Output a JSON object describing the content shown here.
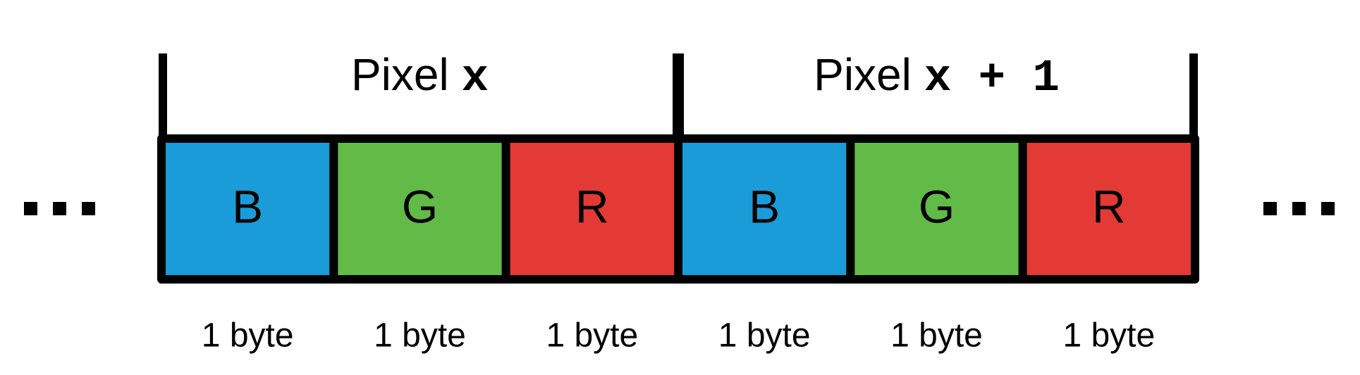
{
  "pixels": [
    {
      "label": "Pixel",
      "expr": "x"
    },
    {
      "label": "Pixel",
      "expr": "x + 1"
    }
  ],
  "cells": [
    {
      "channel": "B",
      "size": "1 byte",
      "color": "#1a9cd8"
    },
    {
      "channel": "G",
      "size": "1 byte",
      "color": "#62bb47"
    },
    {
      "channel": "R",
      "size": "1 byte",
      "color": "#e33a36"
    },
    {
      "channel": "B",
      "size": "1 byte",
      "color": "#1a9cd8"
    },
    {
      "channel": "G",
      "size": "1 byte",
      "color": "#62bb47"
    },
    {
      "channel": "R",
      "size": "1 byte",
      "color": "#e33a36"
    }
  ]
}
